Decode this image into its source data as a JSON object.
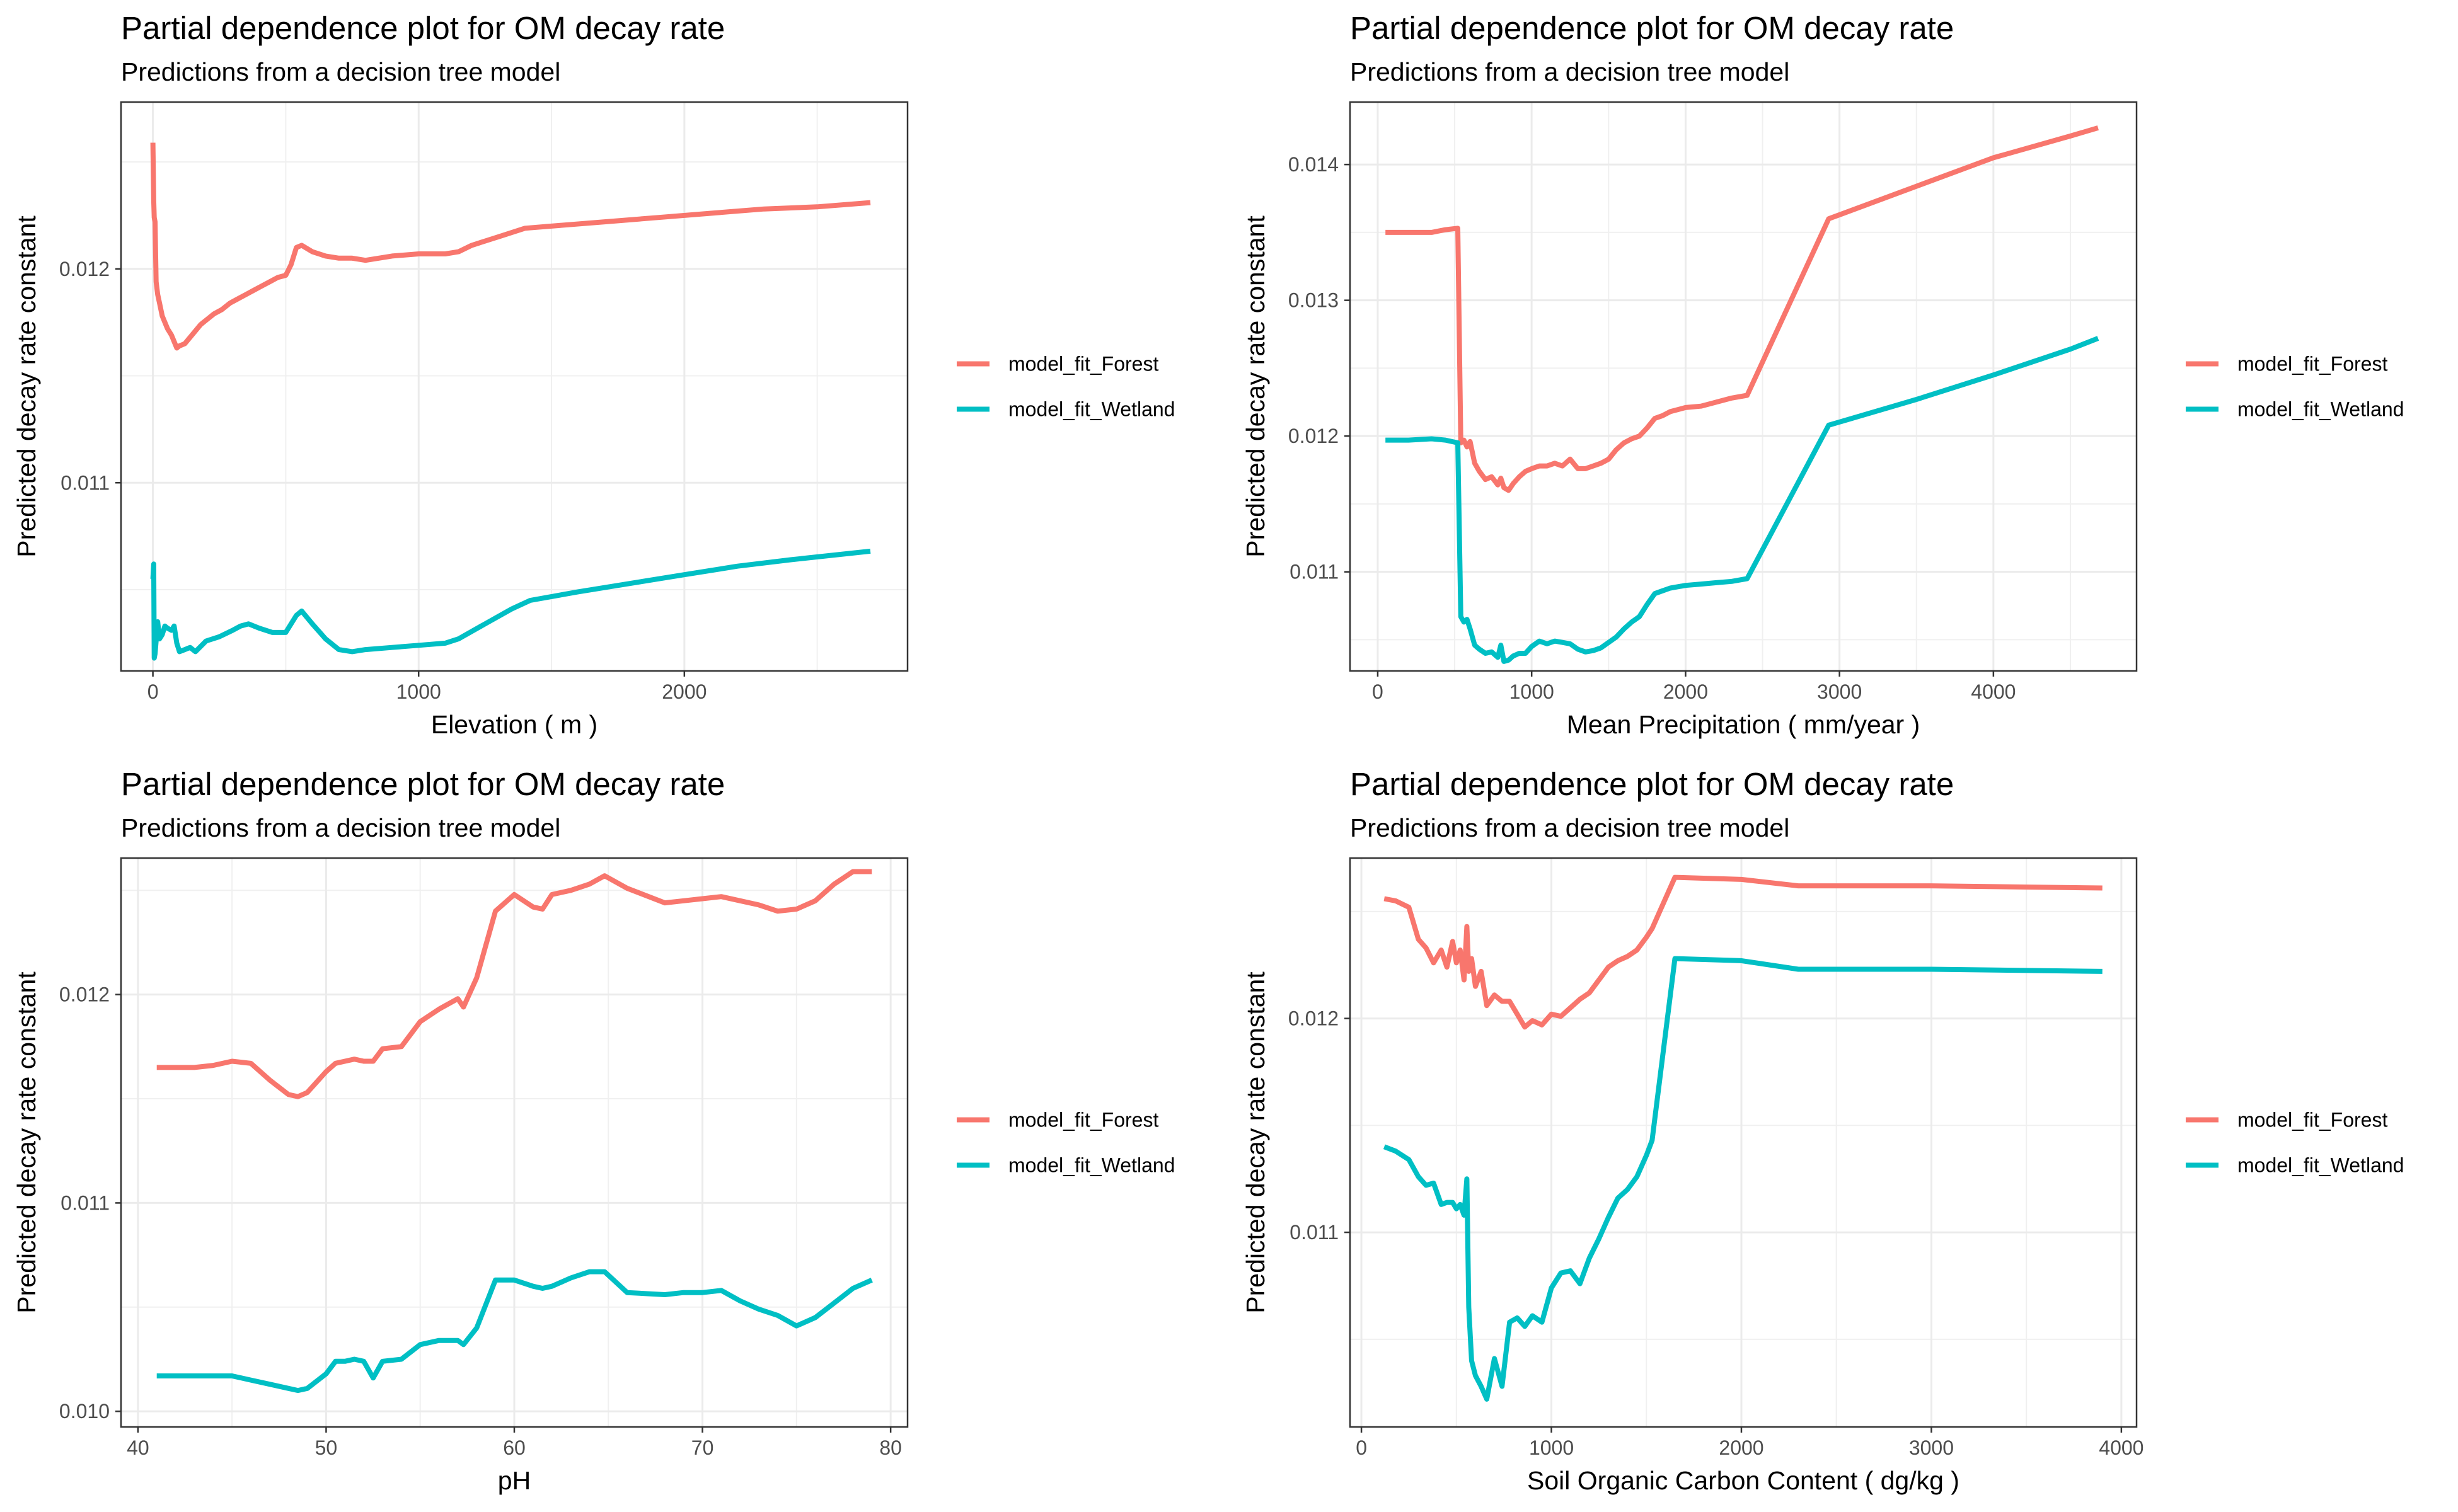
{
  "chart_data": [
    {
      "type": "line",
      "title": "Partial dependence plot for OM decay rate",
      "subtitle": "Predictions from a decision tree model",
      "xlabel": "Elevation   ( m )",
      "ylabel": "Predicted decay rate constant",
      "xlim": [
        -120,
        2840
      ],
      "ylim": [
        0.01012,
        0.01278
      ],
      "xticks": [
        0,
        1000,
        2000
      ],
      "xtick_labels": [
        "0",
        "1000",
        "2000"
      ],
      "yticks": [
        0.011,
        0.012
      ],
      "ytick_labels": [
        "0.011",
        "0.012"
      ],
      "grid": true,
      "legend_position": "right",
      "series": [
        {
          "name": "model_fit_Forest",
          "color": "#F8766D",
          "x": [
            0,
            3,
            5,
            8,
            12,
            18,
            25,
            35,
            45,
            55,
            70,
            80,
            90,
            100,
            120,
            140,
            160,
            180,
            200,
            230,
            260,
            290,
            320,
            350,
            380,
            410,
            440,
            470,
            500,
            520,
            540,
            560,
            600,
            650,
            700,
            750,
            800,
            900,
            1000,
            1100,
            1150,
            1200,
            1300,
            1400,
            1500,
            1700,
            1900,
            2100,
            2300,
            2500,
            2700
          ],
          "y": [
            0.01259,
            0.01232,
            0.01224,
            0.01222,
            0.01194,
            0.01188,
            0.01184,
            0.01178,
            0.01175,
            0.01172,
            0.01169,
            0.01166,
            0.01163,
            0.01164,
            0.01165,
            0.01168,
            0.01171,
            0.01174,
            0.01176,
            0.01179,
            0.01181,
            0.01184,
            0.01186,
            0.01188,
            0.0119,
            0.01192,
            0.01194,
            0.01196,
            0.01197,
            0.01202,
            0.0121,
            0.01211,
            0.01208,
            0.01206,
            0.01205,
            0.01205,
            0.01204,
            0.01206,
            0.01207,
            0.01207,
            0.01208,
            0.01211,
            0.01215,
            0.01219,
            0.0122,
            0.01222,
            0.01224,
            0.01226,
            0.01228,
            0.01229,
            0.01231
          ]
        },
        {
          "name": "model_fit_Wetland",
          "color": "#00BFC4",
          "x": [
            0,
            3,
            5,
            8,
            12,
            18,
            25,
            35,
            45,
            55,
            70,
            80,
            90,
            100,
            120,
            140,
            160,
            200,
            250,
            300,
            330,
            360,
            400,
            450,
            500,
            540,
            560,
            600,
            650,
            700,
            750,
            800,
            900,
            1000,
            1100,
            1150,
            1250,
            1350,
            1420,
            1600,
            1800,
            2000,
            2200,
            2400,
            2700
          ],
          "y": [
            0.01055,
            0.01062,
            0.01018,
            0.0102,
            0.01026,
            0.01035,
            0.01027,
            0.01029,
            0.01033,
            0.01032,
            0.01031,
            0.01033,
            0.01025,
            0.01021,
            0.01022,
            0.01023,
            0.01021,
            0.01026,
            0.01028,
            0.01031,
            0.01033,
            0.01034,
            0.01032,
            0.0103,
            0.0103,
            0.01038,
            0.0104,
            0.01034,
            0.01027,
            0.01022,
            0.01021,
            0.01022,
            0.01023,
            0.01024,
            0.01025,
            0.01027,
            0.01034,
            0.01041,
            0.01045,
            0.01049,
            0.01053,
            0.01057,
            0.01061,
            0.01064,
            0.01068
          ]
        }
      ]
    },
    {
      "type": "line",
      "title": "Partial dependence plot for OM decay rate",
      "subtitle": "Predictions from a decision tree model",
      "xlabel": "Mean Precipitation   ( mm/year )",
      "ylabel": "Predicted decay rate constant",
      "xlim": [
        -180,
        4930
      ],
      "ylim": [
        0.01027,
        0.01446
      ],
      "xticks": [
        0,
        1000,
        2000,
        3000,
        4000
      ],
      "xtick_labels": [
        "0",
        "1000",
        "2000",
        "3000",
        "4000"
      ],
      "yticks": [
        0.011,
        0.012,
        0.013,
        0.014
      ],
      "ytick_labels": [
        "0.011",
        "0.012",
        "0.013",
        "0.014"
      ],
      "grid": true,
      "legend_position": "right",
      "series": [
        {
          "name": "model_fit_Forest",
          "color": "#F8766D",
          "x": [
            50,
            200,
            350,
            440,
            520,
            540,
            560,
            580,
            600,
            630,
            660,
            700,
            740,
            780,
            800,
            820,
            850,
            880,
            920,
            960,
            1000,
            1050,
            1100,
            1150,
            1200,
            1250,
            1300,
            1350,
            1400,
            1450,
            1500,
            1550,
            1600,
            1650,
            1700,
            1750,
            1800,
            1850,
            1900,
            2000,
            2100,
            2200,
            2300,
            2400,
            2930,
            3500,
            4000,
            4500,
            4680
          ],
          "y": [
            0.0135,
            0.0135,
            0.0135,
            0.01352,
            0.01353,
            0.01195,
            0.01197,
            0.01192,
            0.01196,
            0.0118,
            0.01174,
            0.01168,
            0.0117,
            0.01164,
            0.01169,
            0.01162,
            0.0116,
            0.01165,
            0.0117,
            0.01174,
            0.01176,
            0.01178,
            0.01178,
            0.0118,
            0.01178,
            0.01183,
            0.01176,
            0.01176,
            0.01178,
            0.0118,
            0.01183,
            0.0119,
            0.01195,
            0.01198,
            0.012,
            0.01206,
            0.01213,
            0.01215,
            0.01218,
            0.01221,
            0.01222,
            0.01225,
            0.01228,
            0.0123,
            0.0136,
            0.01384,
            0.01405,
            0.01421,
            0.01427
          ]
        },
        {
          "name": "model_fit_Wetland",
          "color": "#00BFC4",
          "x": [
            50,
            200,
            350,
            440,
            520,
            540,
            560,
            580,
            600,
            630,
            660,
            700,
            740,
            780,
            800,
            820,
            850,
            880,
            920,
            960,
            1000,
            1050,
            1100,
            1150,
            1200,
            1250,
            1300,
            1350,
            1400,
            1450,
            1500,
            1550,
            1600,
            1650,
            1700,
            1750,
            1800,
            1850,
            1900,
            2000,
            2100,
            2200,
            2300,
            2400,
            2930,
            3500,
            4000,
            4500,
            4680
          ],
          "y": [
            0.01197,
            0.01197,
            0.01198,
            0.01197,
            0.01195,
            0.01067,
            0.01063,
            0.01065,
            0.01058,
            0.01046,
            0.01043,
            0.0104,
            0.01041,
            0.01037,
            0.01046,
            0.01034,
            0.01035,
            0.01038,
            0.0104,
            0.0104,
            0.01045,
            0.01049,
            0.01047,
            0.01049,
            0.01048,
            0.01047,
            0.01043,
            0.01041,
            0.01042,
            0.01044,
            0.01048,
            0.01052,
            0.01058,
            0.01063,
            0.01067,
            0.01076,
            0.01084,
            0.01086,
            0.01088,
            0.0109,
            0.01091,
            0.01092,
            0.01093,
            0.01095,
            0.01208,
            0.01227,
            0.01245,
            0.01264,
            0.01272
          ]
        }
      ]
    },
    {
      "type": "line",
      "title": "Partial dependence plot for OM decay rate",
      "subtitle": "Predictions from a decision tree model",
      "xlabel": "pH",
      "ylabel": "Predicted decay rate constant",
      "xlim": [
        39.1,
        80.9
      ],
      "ylim": [
        0.009925,
        0.012655
      ],
      "xticks": [
        40,
        50,
        60,
        70,
        80
      ],
      "xtick_labels": [
        "40",
        "50",
        "60",
        "70",
        "80"
      ],
      "yticks": [
        0.01,
        0.011,
        0.012
      ],
      "ytick_labels": [
        "0.010",
        "0.011",
        "0.012"
      ],
      "grid": true,
      "legend_position": "right",
      "series": [
        {
          "name": "model_fit_Forest",
          "color": "#F8766D",
          "x": [
            41,
            42,
            43,
            44,
            45,
            46,
            47,
            48,
            48.5,
            49,
            50,
            50.5,
            51,
            51.5,
            52,
            52.5,
            53,
            54,
            55,
            56,
            57,
            57.3,
            58,
            59,
            60,
            61,
            61.5,
            62,
            63,
            64,
            64.8,
            66,
            68,
            69,
            70,
            71,
            72,
            73,
            74,
            75,
            76,
            77,
            78,
            79
          ],
          "y": [
            0.01165,
            0.01165,
            0.01165,
            0.01166,
            0.01168,
            0.01167,
            0.01159,
            0.01152,
            0.01151,
            0.01153,
            0.01163,
            0.01167,
            0.01168,
            0.01169,
            0.01168,
            0.01168,
            0.01174,
            0.01175,
            0.01187,
            0.01193,
            0.01198,
            0.01194,
            0.01208,
            0.0124,
            0.01248,
            0.01242,
            0.01241,
            0.01248,
            0.0125,
            0.01253,
            0.01257,
            0.01251,
            0.01244,
            0.01245,
            0.01246,
            0.01247,
            0.01245,
            0.01243,
            0.0124,
            0.01241,
            0.01245,
            0.01253,
            0.01259,
            0.01259
          ]
        },
        {
          "name": "model_fit_Wetland",
          "color": "#00BFC4",
          "x": [
            41,
            42,
            43,
            44,
            45,
            46,
            47,
            48,
            48.5,
            49,
            50,
            50.5,
            51,
            51.5,
            52,
            52.5,
            53,
            54,
            55,
            56,
            57,
            57.3,
            58,
            59,
            60,
            61,
            61.5,
            62,
            63,
            64,
            64.8,
            66,
            68,
            69,
            70,
            71,
            72,
            73,
            74,
            75,
            76,
            77,
            78,
            79
          ],
          "y": [
            0.01017,
            0.01017,
            0.01017,
            0.01017,
            0.01017,
            0.01015,
            0.01013,
            0.01011,
            0.0101,
            0.01011,
            0.01018,
            0.01024,
            0.01024,
            0.01025,
            0.01024,
            0.01016,
            0.01024,
            0.01025,
            0.01032,
            0.01034,
            0.01034,
            0.01032,
            0.0104,
            0.01063,
            0.01063,
            0.0106,
            0.01059,
            0.0106,
            0.01064,
            0.01067,
            0.01067,
            0.01057,
            0.01056,
            0.01057,
            0.01057,
            0.01058,
            0.01053,
            0.01049,
            0.01046,
            0.01041,
            0.01045,
            0.01052,
            0.01059,
            0.01063
          ]
        }
      ]
    },
    {
      "type": "line",
      "title": "Partial dependence plot for OM decay rate",
      "subtitle": "Predictions from a decision tree model",
      "xlabel": "Soil Organic Carbon Content   ( dg/kg )",
      "ylabel": "Predicted decay rate constant",
      "xlim": [
        -60,
        4080
      ],
      "ylim": [
        0.01009,
        0.01275
      ],
      "xticks": [
        0,
        1000,
        2000,
        3000,
        4000
      ],
      "xtick_labels": [
        "0",
        "1000",
        "2000",
        "3000",
        "4000"
      ],
      "yticks": [
        0.011,
        0.012
      ],
      "ytick_labels": [
        "0.011",
        "0.012"
      ],
      "grid": true,
      "legend_position": "right",
      "series": [
        {
          "name": "model_fit_Forest",
          "color": "#F8766D",
          "x": [
            120,
            180,
            250,
            300,
            340,
            380,
            420,
            450,
            480,
            500,
            520,
            540,
            555,
            565,
            580,
            600,
            630,
            660,
            700,
            740,
            780,
            820,
            860,
            900,
            950,
            1000,
            1050,
            1100,
            1150,
            1200,
            1250,
            1300,
            1350,
            1400,
            1450,
            1500,
            1530,
            1650,
            2000,
            2300,
            3000,
            3900
          ],
          "y": [
            0.01256,
            0.01255,
            0.01252,
            0.01237,
            0.01233,
            0.01226,
            0.01232,
            0.01224,
            0.01236,
            0.01226,
            0.01232,
            0.01218,
            0.01243,
            0.01222,
            0.01228,
            0.01215,
            0.01222,
            0.01206,
            0.01211,
            0.01208,
            0.01208,
            0.01202,
            0.01196,
            0.01199,
            0.01197,
            0.01202,
            0.01201,
            0.01205,
            0.01209,
            0.01212,
            0.01218,
            0.01224,
            0.01227,
            0.01229,
            0.01232,
            0.01238,
            0.01242,
            0.01266,
            0.01265,
            0.01262,
            0.01262,
            0.01261
          ]
        },
        {
          "name": "model_fit_Wetland",
          "color": "#00BFC4",
          "x": [
            120,
            180,
            250,
            300,
            340,
            380,
            420,
            450,
            480,
            500,
            520,
            540,
            555,
            565,
            580,
            600,
            630,
            660,
            700,
            740,
            780,
            820,
            860,
            900,
            950,
            1000,
            1050,
            1100,
            1150,
            1200,
            1250,
            1300,
            1350,
            1400,
            1450,
            1500,
            1530,
            1650,
            2000,
            2300,
            3000,
            3900
          ],
          "y": [
            0.0114,
            0.01138,
            0.01134,
            0.01126,
            0.01122,
            0.01123,
            0.01113,
            0.01114,
            0.01114,
            0.01111,
            0.01113,
            0.01108,
            0.01125,
            0.01065,
            0.0104,
            0.01033,
            0.01028,
            0.01022,
            0.01041,
            0.01028,
            0.01058,
            0.0106,
            0.01056,
            0.01061,
            0.01058,
            0.01074,
            0.01081,
            0.01082,
            0.01076,
            0.01088,
            0.01097,
            0.01107,
            0.01116,
            0.0112,
            0.01126,
            0.01136,
            0.01143,
            0.01228,
            0.01227,
            0.01223,
            0.01223,
            0.01222
          ]
        }
      ]
    }
  ]
}
